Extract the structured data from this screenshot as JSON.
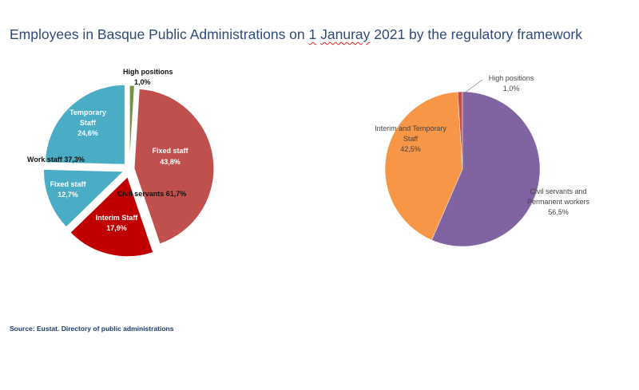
{
  "title": {
    "before": "Employees in Basque Public Administrations on ",
    "num": "1",
    "space": " ",
    "month": "Januray",
    "after": " 2021 by the regulatory framework"
  },
  "source": "Source: Eustat. Directory of public administrations",
  "chart_data": [
    {
      "type": "pie",
      "title": "",
      "slices": [
        {
          "label": "High positions",
          "value": 1.0,
          "value_label": "1,0%",
          "color": "#77933c"
        },
        {
          "label": "Fixed staff",
          "value": 43.8,
          "value_label": "43,8%",
          "color": "#c0504d",
          "group": "Civil servants"
        },
        {
          "label": "Interim Staff",
          "value": 17.9,
          "value_label": "17,9%",
          "color": "#c00000",
          "group": "Civil servants"
        },
        {
          "label": "Fixed staff",
          "value": 12.7,
          "value_label": "12,7%",
          "color": "#4bacc6",
          "group": "Work staff"
        },
        {
          "label": "Temporary Staff",
          "value": 24.6,
          "value_label": "24,6%",
          "color": "#4bacc6",
          "group": "Work staff"
        }
      ],
      "group_labels": [
        {
          "label": "Civil servants",
          "value_label": "61,7%"
        },
        {
          "label": "Work staff",
          "value_label": "37,3%"
        }
      ]
    },
    {
      "type": "pie",
      "title": "",
      "slices": [
        {
          "label": "High positions",
          "value": 1.0,
          "value_label": "1,0%",
          "color": "#c0504d"
        },
        {
          "label": "Civil servants and Permanent workers",
          "value": 56.5,
          "value_label": "56,5%",
          "color": "#8064a2"
        },
        {
          "label": "Interim and Temporary Staff",
          "value": 42.5,
          "value_label": "42,5%",
          "color": "#f79646"
        }
      ]
    }
  ]
}
